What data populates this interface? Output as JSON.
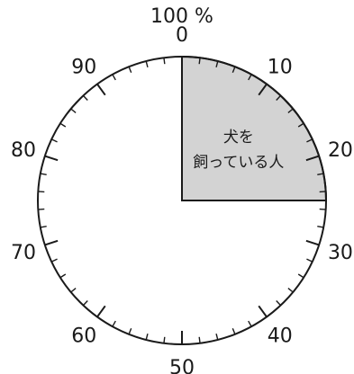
{
  "chart_data": {
    "type": "pie",
    "top_label": "100 %",
    "scale_ticks": [
      "0",
      "10",
      "20",
      "30",
      "40",
      "50",
      "60",
      "70",
      "80",
      "90"
    ],
    "scale_max": 100,
    "minor_tick_step": 2,
    "slices": [
      {
        "label_lines": [
          "犬を",
          "飼っている人"
        ],
        "value": 25,
        "color": "#d3d3d3"
      }
    ],
    "outline_color": "#1a1a1a",
    "background_color": "#ffffff"
  }
}
